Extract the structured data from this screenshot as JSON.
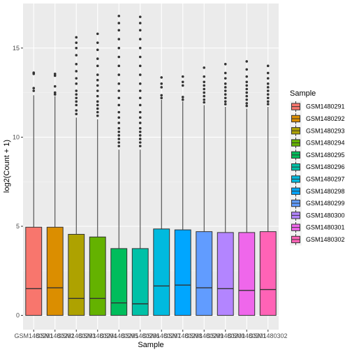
{
  "chart_data": {
    "type": "boxplot",
    "xlabel": "Sample",
    "ylabel": "log2(Count + 1)",
    "ylim": [
      -0.8,
      17.5
    ],
    "yticks": [
      0,
      5,
      10,
      15
    ],
    "legend_title": "Sample",
    "legend_position": "right",
    "grid": true,
    "categories": [
      "GSM1480291",
      "GSM1480292",
      "GSM1480293",
      "GSM1480294",
      "GSM1480295",
      "GSM1480296",
      "GSM1480297",
      "GSM1480298",
      "GSM1480299",
      "GSM1480300",
      "GSM1480301",
      "GSM1480302"
    ],
    "colors": [
      "#F8766D",
      "#DB8E00",
      "#AEA200",
      "#64B200",
      "#00BD5C",
      "#00C1A7",
      "#00BADE",
      "#00A6FF",
      "#619CFF",
      "#B385FF",
      "#EF67EB",
      "#FF63B6"
    ],
    "series": [
      {
        "min": 0,
        "q1": 0,
        "median": 1.5,
        "q3": 4.95,
        "whisker_high": 12.35,
        "outliers": [
          12.6,
          12.75,
          13.55,
          13.62
        ]
      },
      {
        "min": 0,
        "q1": 0,
        "median": 1.55,
        "q3": 4.95,
        "whisker_high": 12.3,
        "outliers": [
          12.4,
          12.5,
          12.85,
          13.45,
          13.55
        ]
      },
      {
        "min": 0,
        "q1": 0,
        "median": 0.95,
        "q3": 4.55,
        "whisker_high": 11.1,
        "outliers": [
          11.3,
          11.5,
          11.8,
          12.0,
          12.2,
          12.4,
          12.6,
          13.0,
          13.3,
          13.7,
          14.1,
          14.6,
          15.0,
          15.3,
          15.6
        ]
      },
      {
        "min": 0,
        "q1": 0,
        "median": 0.95,
        "q3": 4.4,
        "whisker_high": 11.0,
        "outliers": [
          11.2,
          11.4,
          11.6,
          11.8,
          12.0,
          12.3,
          12.6,
          12.9,
          13.2,
          13.5,
          14.0,
          14.4,
          14.9,
          15.3,
          15.8
        ]
      },
      {
        "min": 0,
        "q1": 0,
        "median": 0.7,
        "q3": 3.75,
        "whisker_high": 9.3,
        "outliers": [
          9.5,
          9.7,
          9.9,
          10.1,
          10.3,
          10.5,
          10.8,
          11.1,
          11.4,
          11.8,
          12.2,
          12.6,
          13.0,
          13.5,
          14.0,
          14.5,
          15.0,
          15.5,
          16.0,
          16.4,
          16.8
        ]
      },
      {
        "min": 0,
        "q1": 0,
        "median": 0.65,
        "q3": 3.75,
        "whisker_high": 9.3,
        "outliers": [
          9.5,
          9.7,
          9.9,
          10.1,
          10.3,
          10.5,
          10.8,
          11.1,
          11.4,
          11.8,
          12.2,
          12.6,
          13.0,
          13.5,
          14.0,
          14.5,
          15.0,
          15.5,
          16.0,
          16.4,
          16.75
        ]
      },
      {
        "min": 0,
        "q1": 0,
        "median": 1.65,
        "q3": 4.85,
        "whisker_high": 12.1,
        "outliers": [
          12.2,
          12.35,
          12.8,
          13.0,
          13.35
        ]
      },
      {
        "min": 0,
        "q1": 0,
        "median": 1.7,
        "q3": 4.8,
        "whisker_high": 12.0,
        "outliers": [
          12.1,
          12.25,
          12.9,
          13.1,
          13.4
        ]
      },
      {
        "min": 0,
        "q1": 0,
        "median": 1.55,
        "q3": 4.7,
        "whisker_high": 11.8,
        "outliers": [
          11.95,
          12.1,
          12.3,
          12.5,
          12.7,
          12.9,
          13.1,
          13.4,
          13.9
        ]
      },
      {
        "min": 0,
        "q1": 0,
        "median": 1.5,
        "q3": 4.65,
        "whisker_high": 11.7,
        "outliers": [
          11.85,
          12.0,
          12.2,
          12.4,
          12.6,
          12.8,
          13.0,
          13.3,
          13.6,
          14.1
        ]
      },
      {
        "min": 0,
        "q1": 0,
        "median": 1.4,
        "q3": 4.65,
        "whisker_high": 11.6,
        "outliers": [
          11.75,
          11.9,
          12.1,
          12.3,
          12.5,
          12.7,
          12.9,
          13.1,
          13.4,
          13.8,
          14.25
        ]
      },
      {
        "min": 0,
        "q1": 0,
        "median": 1.45,
        "q3": 4.7,
        "whisker_high": 11.7,
        "outliers": [
          11.85,
          12.0,
          12.2,
          12.4,
          12.6,
          12.8,
          13.0,
          13.3,
          13.6,
          14.0
        ]
      }
    ]
  }
}
